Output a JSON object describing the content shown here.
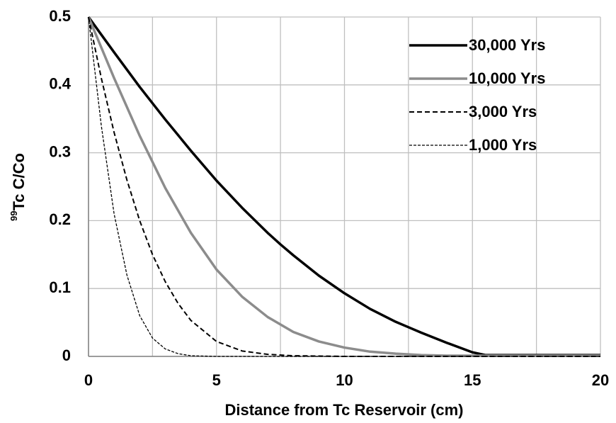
{
  "chart_data": {
    "type": "line",
    "xlabel": "Distance from Tc Reservoir (cm)",
    "ylabel_superscript": "99",
    "ylabel": "Tc  C/Co",
    "xlim": [
      0,
      20
    ],
    "xticks": [
      0,
      5,
      10,
      15,
      20
    ],
    "x_minor_grid": [
      2.5,
      7.5,
      12.5,
      17.5
    ],
    "ylim": [
      0,
      0.5
    ],
    "yticks": [
      0,
      0.1,
      0.2,
      0.3,
      0.4,
      0.5
    ],
    "grid": true,
    "legend": "upper right",
    "series": [
      {
        "name": "30,000 Yrs",
        "color": "#000000",
        "dash": "solid",
        "width": 3.5,
        "x": [
          0,
          1,
          2,
          2.5,
          3,
          4,
          5,
          6,
          7,
          7.5,
          8,
          9,
          10,
          11,
          12,
          12.5,
          13,
          14,
          15,
          15.5,
          16,
          18,
          20
        ],
        "values": [
          0.5,
          0.448,
          0.397,
          0.373,
          0.349,
          0.303,
          0.259,
          0.219,
          0.182,
          0.165,
          0.149,
          0.119,
          0.093,
          0.07,
          0.051,
          0.043,
          0.035,
          0.02,
          0.006,
          0.002,
          0.002,
          0.002,
          0.002
        ]
      },
      {
        "name": "10,000 Yrs",
        "color": "#8c8c8c",
        "dash": "solid",
        "width": 3.5,
        "x": [
          0,
          1,
          2,
          3,
          4,
          5,
          6,
          7,
          8,
          9,
          10,
          11,
          12,
          13,
          14,
          15,
          16,
          18,
          20
        ],
        "values": [
          0.5,
          0.41,
          0.325,
          0.248,
          0.182,
          0.128,
          0.088,
          0.058,
          0.036,
          0.022,
          0.013,
          0.007,
          0.004,
          0.002,
          0.001,
          0.001,
          0.001,
          0.001,
          0.001
        ]
      },
      {
        "name": "3,000 Yrs",
        "color": "#000000",
        "dash": "dashed",
        "width": 2,
        "x": [
          0,
          0.5,
          1,
          1.5,
          2,
          2.5,
          3,
          3.5,
          4,
          5,
          6,
          7,
          8,
          10,
          20
        ],
        "values": [
          0.5,
          0.41,
          0.33,
          0.26,
          0.2,
          0.15,
          0.11,
          0.078,
          0.053,
          0.022,
          0.008,
          0.003,
          0.001,
          0,
          0
        ]
      },
      {
        "name": "1,000 Yrs",
        "color": "#000000",
        "dash": "dashed",
        "width": 1.3,
        "x": [
          0,
          0.5,
          1,
          1.5,
          2,
          2.5,
          3,
          3.5,
          4,
          5,
          20
        ],
        "values": [
          0.5,
          0.34,
          0.21,
          0.12,
          0.06,
          0.027,
          0.011,
          0.004,
          0.001,
          0,
          0
        ]
      }
    ]
  }
}
